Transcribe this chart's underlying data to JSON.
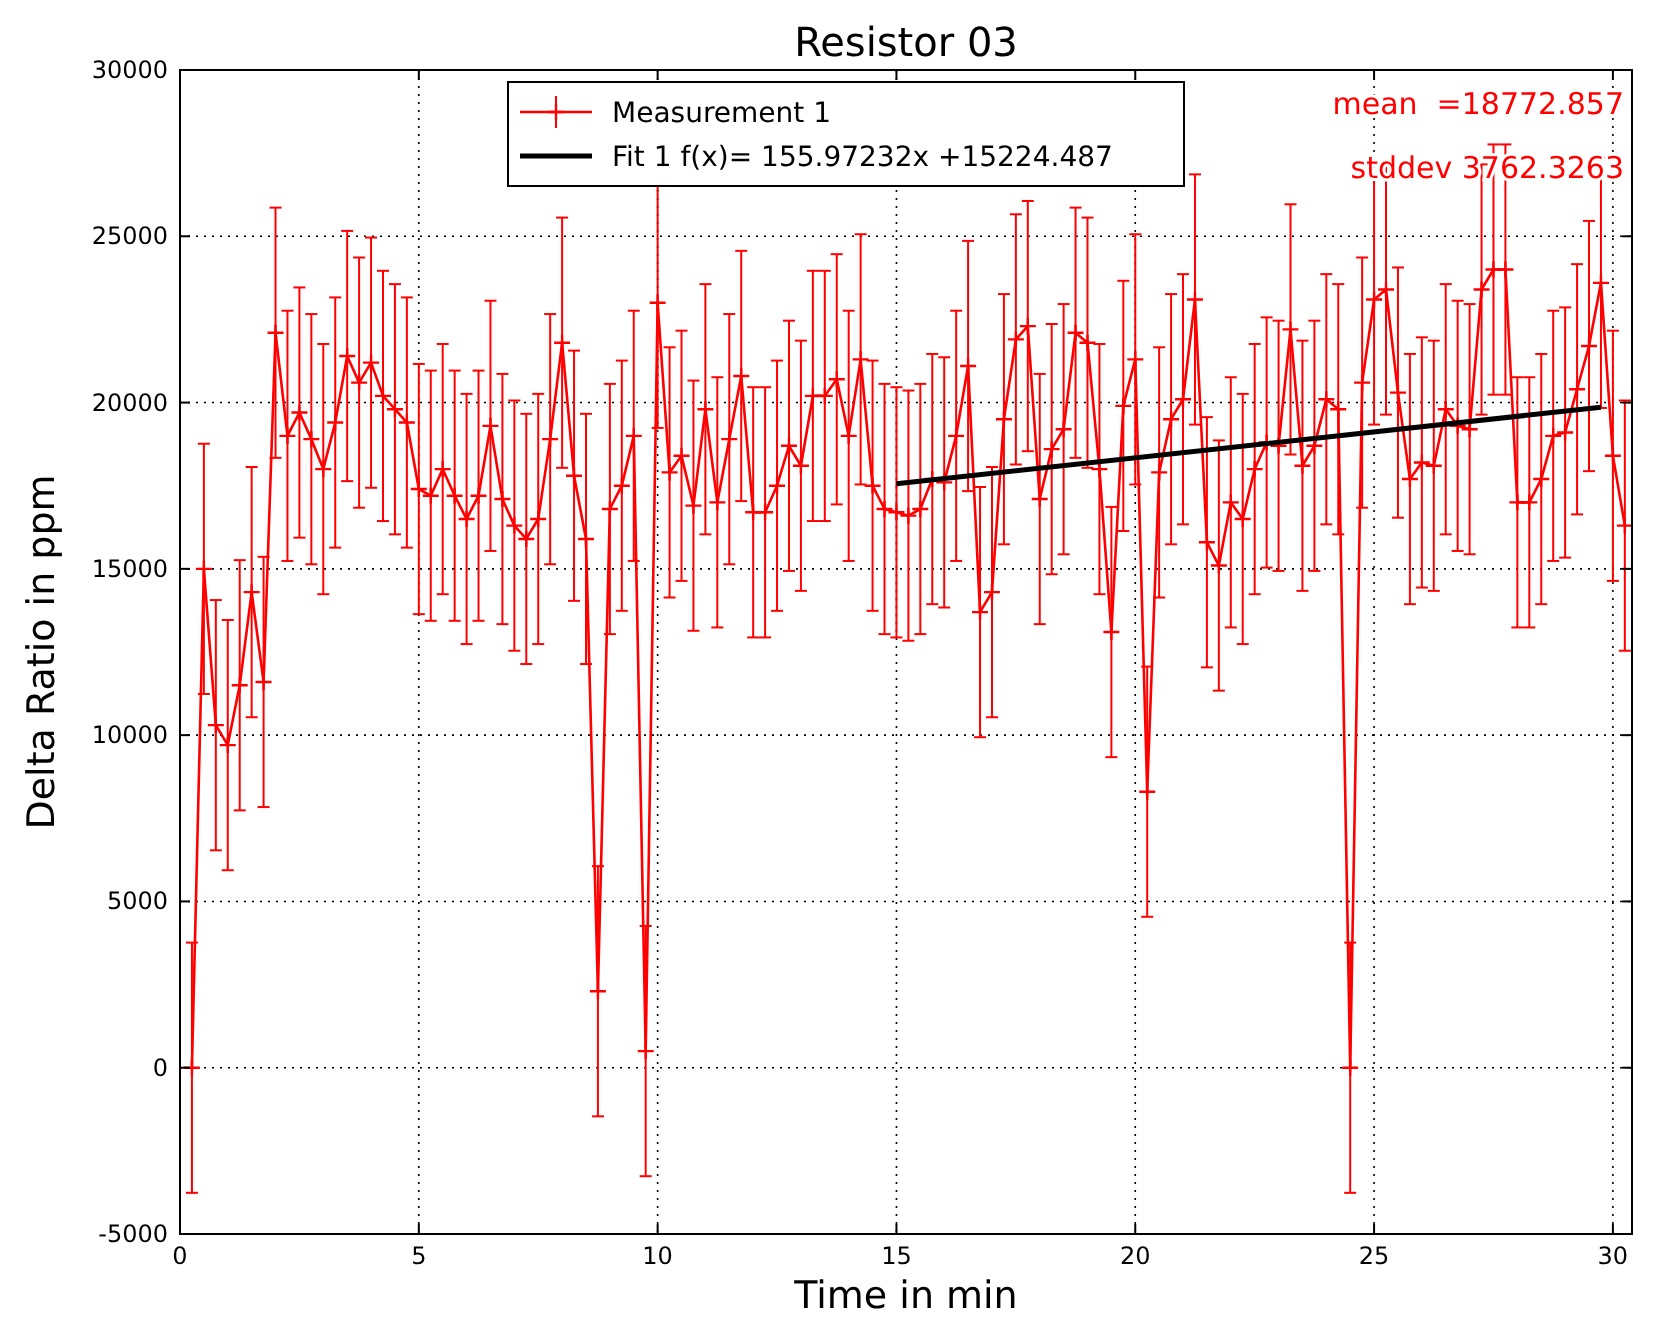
{
  "chart_data": {
    "type": "line",
    "title": "Resistor 03",
    "xlabel": "Time in min",
    "ylabel": "Delta Ratio in ppm",
    "xlim": [
      0,
      30.4
    ],
    "xticks": [
      0,
      5,
      10,
      15,
      20,
      25,
      30
    ],
    "ylim": [
      -5000,
      30000
    ],
    "yticks": [
      -5000,
      0,
      5000,
      10000,
      15000,
      20000,
      25000,
      30000
    ],
    "grid": true,
    "legend": "top",
    "annotations": [
      "mean  =18772.857",
      "stddev 3762.3263"
    ],
    "series": [
      {
        "name": "Measurement 1",
        "color": "#ff0000",
        "marker": "cross",
        "line_style": "solid",
        "x": [
          0.25,
          0.5,
          0.75,
          1,
          1.25,
          1.5,
          1.75,
          2,
          2.25,
          2.5,
          2.75,
          3,
          3.25,
          3.5,
          3.75,
          4,
          4.25,
          4.5,
          4.75,
          5,
          5.25,
          5.5,
          5.75,
          6,
          6.25,
          6.5,
          6.75,
          7,
          7.25,
          7.5,
          7.75,
          8,
          8.25,
          8.5,
          8.75,
          9,
          9.25,
          9.5,
          9.75,
          10,
          10.25,
          10.5,
          10.75,
          11,
          11.25,
          11.5,
          11.75,
          12,
          12.25,
          12.5,
          12.75,
          13,
          13.25,
          13.5,
          13.75,
          14,
          14.25,
          14.5,
          14.75,
          15,
          15.25,
          15.5,
          15.75,
          16,
          16.25,
          16.5,
          16.75,
          17,
          17.25,
          17.5,
          17.75,
          18,
          18.25,
          18.5,
          18.75,
          19,
          19.25,
          19.5,
          19.75,
          20,
          20.25,
          20.5,
          20.75,
          21,
          21.25,
          21.5,
          21.75,
          22,
          22.25,
          22.5,
          22.75,
          23,
          23.25,
          23.5,
          23.75,
          24,
          24.25,
          24.5,
          24.75,
          25,
          25.25,
          25.5,
          25.75,
          26,
          26.25,
          26.5,
          26.75,
          27,
          27.25,
          27.5,
          27.75,
          28,
          28.25,
          28.5,
          28.75,
          29,
          29.25,
          29.5,
          29.75,
          30,
          30.25
        ],
        "values": [
          0,
          15000,
          10300,
          9700,
          11500,
          14300,
          11600,
          22100,
          19000,
          19700,
          18900,
          18000,
          19400,
          21400,
          20600,
          21200,
          20200,
          19800,
          19400,
          17400,
          17200,
          18000,
          17200,
          16500,
          17200,
          19300,
          17100,
          16300,
          15900,
          16500,
          18900,
          21800,
          17800,
          15900,
          2300,
          16800,
          17500,
          19000,
          500,
          23000,
          17900,
          18400,
          16900,
          19800,
          17000,
          18900,
          20800,
          16700,
          16700,
          17500,
          18700,
          18100,
          20200,
          20200,
          20700,
          19000,
          21300,
          17500,
          16800,
          16700,
          16600,
          16800,
          17700,
          17600,
          19000,
          21100,
          13700,
          14300,
          19500,
          21900,
          22300,
          17100,
          18600,
          19200,
          22100,
          21800,
          18000,
          13100,
          19900,
          21300,
          8300,
          17900,
          19500,
          20100,
          23100,
          15800,
          15100,
          17000,
          16500,
          18000,
          18800,
          18700,
          22200,
          18100,
          18700,
          20100,
          19800,
          0,
          20600,
          23100,
          23400,
          20300,
          17700,
          18200,
          18100,
          19800,
          19300,
          19200,
          23400,
          24000,
          24000,
          17000,
          17000,
          17700,
          19000,
          19100,
          20400,
          21700,
          23600,
          18400,
          16300
        ],
        "errors": [
          3762,
          3762,
          3762,
          3762,
          3762,
          3762,
          3762,
          3762,
          3762,
          3762,
          3762,
          3762,
          3762,
          3762,
          3762,
          3762,
          3762,
          3762,
          3762,
          3762,
          3762,
          3762,
          3762,
          3762,
          3762,
          3762,
          3762,
          3762,
          3762,
          3762,
          3762,
          3762,
          3762,
          3762,
          3762,
          3762,
          3762,
          3762,
          3762,
          3762,
          3762,
          3762,
          3762,
          3762,
          3762,
          3762,
          3762,
          3762,
          3762,
          3762,
          3762,
          3762,
          3762,
          3762,
          3762,
          3762,
          3762,
          3762,
          3762,
          3762,
          3762,
          3762,
          3762,
          3762,
          3762,
          3762,
          3762,
          3762,
          3762,
          3762,
          3762,
          3762,
          3762,
          3762,
          3762,
          3762,
          3762,
          3762,
          3762,
          3762,
          3762,
          3762,
          3762,
          3762,
          3762,
          3762,
          3762,
          3762,
          3762,
          3762,
          3762,
          3762,
          3762,
          3762,
          3762,
          3762,
          3762,
          3762,
          3762,
          3762,
          3762,
          3762,
          3762,
          3762,
          3762,
          3762,
          3762,
          3762,
          3762,
          3762,
          3762,
          3762,
          3762,
          3762,
          3762,
          3762,
          3762,
          3762,
          3762,
          3762,
          3762
        ]
      },
      {
        "name": "Fit 1 f(x)= 155.97232x +15224.487",
        "color": "#000000",
        "marker": "none",
        "line_style": "solid",
        "x": [
          15,
          29.75
        ],
        "values": [
          17560,
          19860
        ]
      }
    ]
  }
}
